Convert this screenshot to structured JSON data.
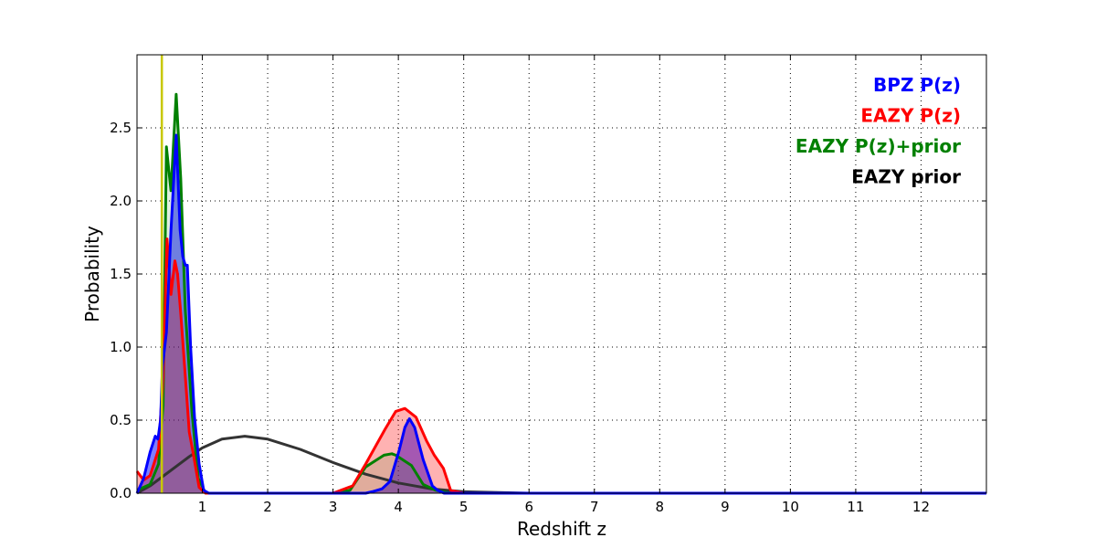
{
  "chart_data": {
    "type": "area",
    "title": "",
    "xlabel": "Redshift z",
    "ylabel": "Probability",
    "xlim": [
      0,
      13
    ],
    "ylim": [
      0,
      3.0
    ],
    "grid": true,
    "legend_position": "top-right",
    "xticks": [
      "1",
      "2",
      "3",
      "4",
      "5",
      "6",
      "7",
      "8",
      "9",
      "10",
      "11",
      "12"
    ],
    "yticks": [
      "0.0",
      "0.5",
      "1.0",
      "1.5",
      "2.0",
      "2.5"
    ],
    "marker_line": {
      "x": 0.38,
      "color": "#c8c800"
    },
    "series": [
      {
        "name": "BPZ P(z)",
        "color": "#0000ff",
        "fill": "rgba(0,0,255,0.5)",
        "x": [
          0,
          0.1,
          0.2,
          0.28,
          0.32,
          0.36,
          0.39,
          0.45,
          0.52,
          0.6,
          0.66,
          0.7,
          0.74,
          0.77,
          0.82,
          0.88,
          0.95,
          1.02,
          1.1,
          3.5,
          3.6,
          3.75,
          3.87,
          4.01,
          4.1,
          4.17,
          4.25,
          4.38,
          4.52,
          4.6,
          4.7,
          13
        ],
        "y": [
          0,
          0.1,
          0.28,
          0.39,
          0.37,
          0.5,
          0.87,
          1.1,
          1.8,
          2.45,
          1.8,
          1.62,
          1.56,
          1.56,
          1.0,
          0.52,
          0.2,
          0.02,
          0,
          0,
          0.01,
          0.03,
          0.08,
          0.29,
          0.45,
          0.51,
          0.45,
          0.23,
          0.05,
          0.02,
          0,
          0
        ]
      },
      {
        "name": "EAZY P(z)",
        "color": "#ff0000",
        "fill": "rgba(255,0,0,0.3)",
        "x": [
          0,
          0.1,
          0.2,
          0.33,
          0.4,
          0.46,
          0.52,
          0.58,
          0.62,
          0.67,
          0.74,
          0.8,
          0.87,
          0.95,
          1.05,
          3.0,
          3.3,
          3.5,
          3.8,
          3.96,
          4.1,
          4.27,
          4.43,
          4.55,
          4.69,
          4.8,
          5.0,
          11.8
        ],
        "y": [
          0.15,
          0.09,
          0.12,
          0.3,
          0.8,
          1.74,
          1.36,
          1.59,
          1.5,
          1.23,
          0.8,
          0.42,
          0.25,
          0.04,
          0,
          0,
          0.05,
          0.2,
          0.44,
          0.56,
          0.58,
          0.52,
          0.36,
          0.26,
          0.17,
          0.02,
          0,
          0
        ]
      },
      {
        "name": "EAZY P(z)+prior",
        "color": "#008000",
        "fill": "rgba(0,128,0,0.12)",
        "x": [
          0,
          0.2,
          0.33,
          0.4,
          0.45,
          0.52,
          0.6,
          0.67,
          0.74,
          0.84,
          0.94,
          1.05,
          3.0,
          3.26,
          3.5,
          3.78,
          3.9,
          3.96,
          4.2,
          4.38,
          4.57,
          4.8
        ],
        "y": [
          0.02,
          0.06,
          0.2,
          0.6,
          2.37,
          2.07,
          2.73,
          2.15,
          1.25,
          0.56,
          0.1,
          0,
          0,
          0.02,
          0.18,
          0.26,
          0.27,
          0.26,
          0.19,
          0.06,
          0.02,
          0
        ]
      },
      {
        "name": "EAZY prior",
        "color": "#333333",
        "fill": "none",
        "x": [
          0,
          0.2,
          0.5,
          0.8,
          1.0,
          1.3,
          1.65,
          2.0,
          2.5,
          3.0,
          3.5,
          4.0,
          4.5,
          5.0,
          6.0,
          7.0
        ],
        "y": [
          0,
          0.05,
          0.15,
          0.25,
          0.31,
          0.37,
          0.39,
          0.37,
          0.3,
          0.21,
          0.13,
          0.07,
          0.03,
          0.01,
          0,
          0
        ]
      }
    ]
  }
}
